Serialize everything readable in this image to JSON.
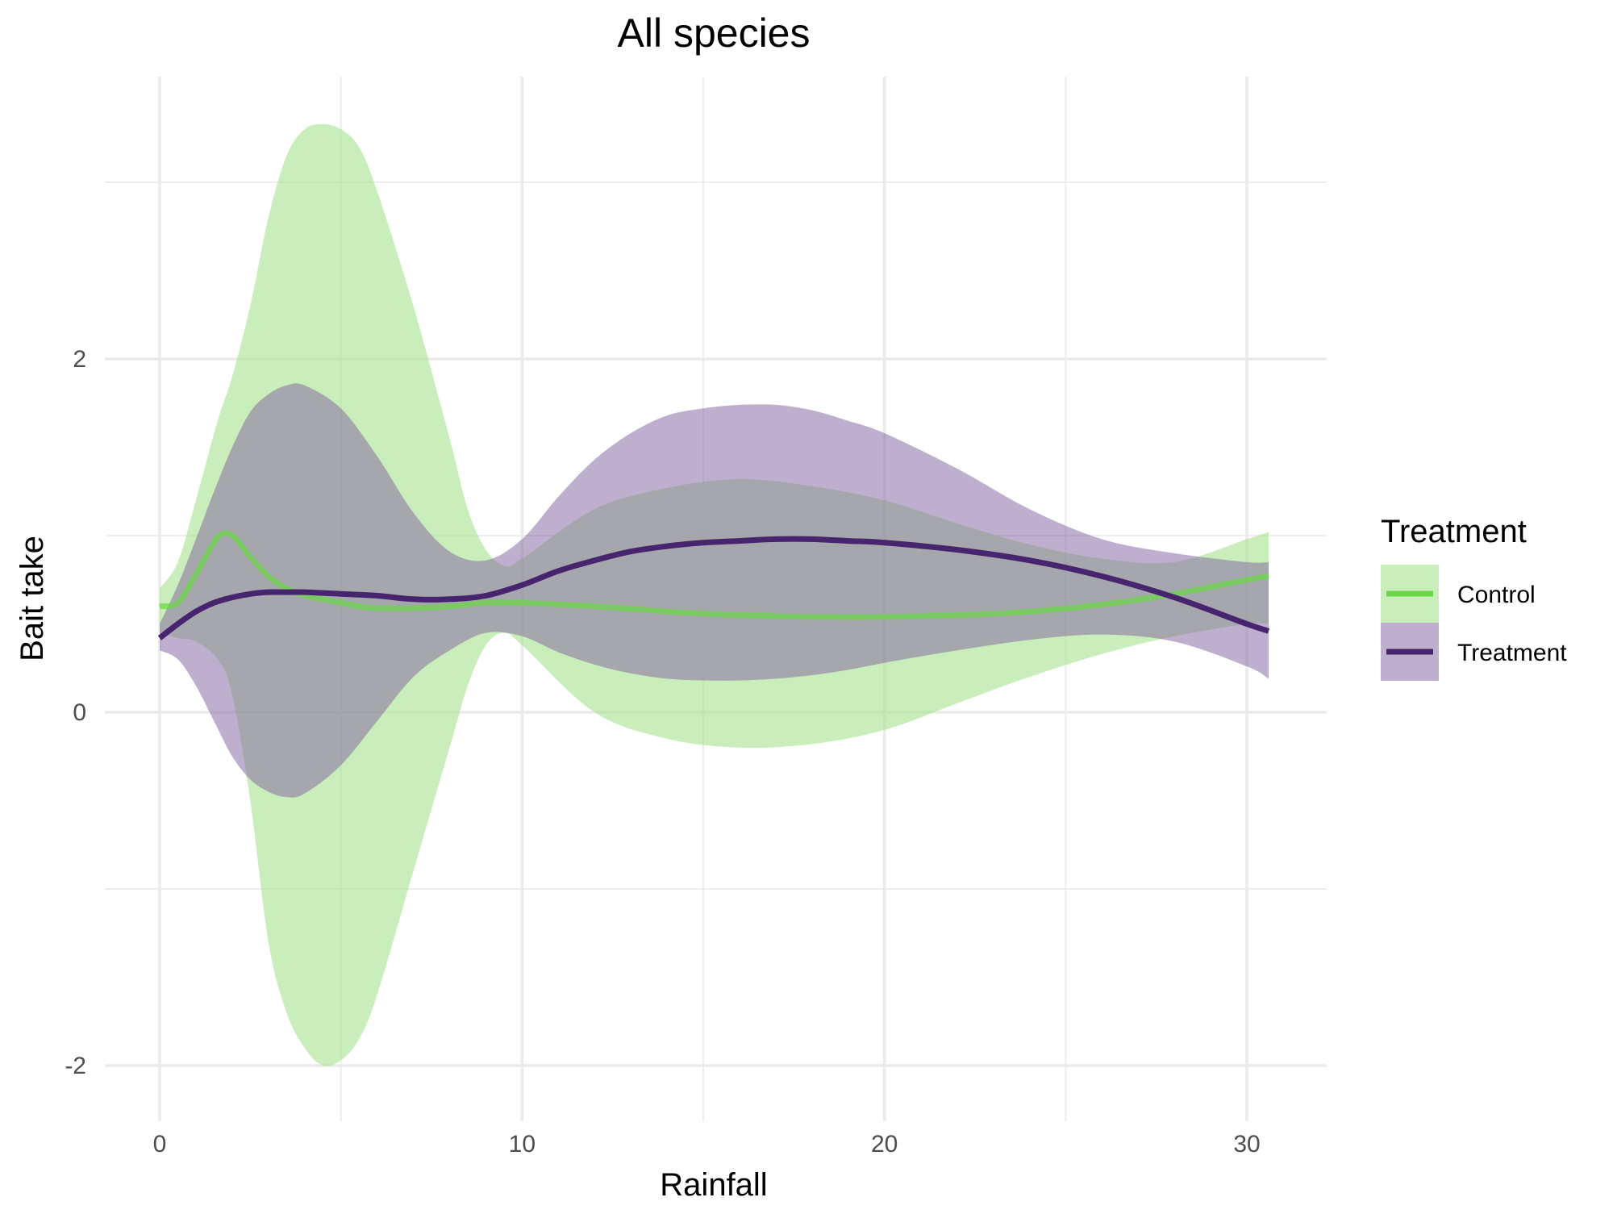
{
  "chart_data": {
    "type": "line",
    "title": "All species",
    "xlabel": "Rainfall",
    "ylabel": "Bait take",
    "xlim": [
      -1.5,
      32
    ],
    "ylim": [
      -2.25,
      3.55
    ],
    "x_ticks": [
      0,
      10,
      20,
      30
    ],
    "x_tick_labels": [
      "0",
      "10",
      "20",
      "30"
    ],
    "y_ticks": [
      -2,
      0,
      2
    ],
    "y_tick_labels": [
      "-2",
      "0",
      "2"
    ],
    "x_minor": [
      5,
      15,
      25
    ],
    "y_minor": [
      -1,
      1,
      3
    ],
    "grid": true,
    "legend": {
      "title": "Treatment",
      "position": "right",
      "entries": [
        "Control",
        "Treatment"
      ]
    },
    "series": [
      {
        "name": "Control",
        "color": "#6cd44a",
        "band_color": "#a7e38d",
        "band_opacity": 0.6,
        "line_opacity": 0.75,
        "points": [
          {
            "x": 0,
            "y": 0.6,
            "lo": 0.45,
            "hi": 0.7
          },
          {
            "x": 0.5,
            "y": 0.62,
            "lo": 0.42,
            "hi": 0.85
          },
          {
            "x": 1.0,
            "y": 0.78,
            "lo": 0.4,
            "hi": 1.2
          },
          {
            "x": 1.6,
            "y": 0.99,
            "lo": 0.3,
            "hi": 1.65
          },
          {
            "x": 2.0,
            "y": 1.0,
            "lo": 0.1,
            "hi": 1.9
          },
          {
            "x": 2.5,
            "y": 0.88,
            "lo": -0.5,
            "hi": 2.3
          },
          {
            "x": 3.0,
            "y": 0.77,
            "lo": -1.3,
            "hi": 2.8
          },
          {
            "x": 3.5,
            "y": 0.7,
            "lo": -1.7,
            "hi": 3.15
          },
          {
            "x": 4.0,
            "y": 0.66,
            "lo": -1.9,
            "hi": 3.3
          },
          {
            "x": 4.5,
            "y": 0.64,
            "lo": -2.0,
            "hi": 3.33
          },
          {
            "x": 5.0,
            "y": 0.62,
            "lo": -1.97,
            "hi": 3.3
          },
          {
            "x": 5.5,
            "y": 0.6,
            "lo": -1.85,
            "hi": 3.2
          },
          {
            "x": 6.0,
            "y": 0.59,
            "lo": -1.6,
            "hi": 2.95
          },
          {
            "x": 7.0,
            "y": 0.59,
            "lo": -0.9,
            "hi": 2.3
          },
          {
            "x": 8.0,
            "y": 0.6,
            "lo": -0.2,
            "hi": 1.55
          },
          {
            "x": 8.5,
            "y": 0.61,
            "lo": 0.15,
            "hi": 1.15
          },
          {
            "x": 9.0,
            "y": 0.62,
            "lo": 0.38,
            "hi": 0.92
          },
          {
            "x": 9.5,
            "y": 0.62,
            "lo": 0.45,
            "hi": 0.83
          },
          {
            "x": 10.0,
            "y": 0.62,
            "lo": 0.38,
            "hi": 0.87
          },
          {
            "x": 12.0,
            "y": 0.6,
            "lo": 0.0,
            "hi": 1.15
          },
          {
            "x": 14.0,
            "y": 0.57,
            "lo": -0.15,
            "hi": 1.27
          },
          {
            "x": 16.0,
            "y": 0.55,
            "lo": -0.2,
            "hi": 1.32
          },
          {
            "x": 18.0,
            "y": 0.54,
            "lo": -0.18,
            "hi": 1.28
          },
          {
            "x": 20.0,
            "y": 0.54,
            "lo": -0.1,
            "hi": 1.2
          },
          {
            "x": 22.0,
            "y": 0.55,
            "lo": 0.05,
            "hi": 1.07
          },
          {
            "x": 24.0,
            "y": 0.57,
            "lo": 0.2,
            "hi": 0.95
          },
          {
            "x": 26.0,
            "y": 0.61,
            "lo": 0.33,
            "hi": 0.87
          },
          {
            "x": 28.0,
            "y": 0.67,
            "lo": 0.43,
            "hi": 0.85
          },
          {
            "x": 30.0,
            "y": 0.75,
            "lo": 0.5,
            "hi": 0.98
          },
          {
            "x": 30.6,
            "y": 0.77,
            "lo": 0.5,
            "hi": 1.02
          }
        ]
      },
      {
        "name": "Treatment",
        "color": "#46246e",
        "band_color": "#8060a0",
        "band_opacity": 0.5,
        "line_opacity": 1,
        "points": [
          {
            "x": 0,
            "y": 0.42,
            "lo": 0.35,
            "hi": 0.5
          },
          {
            "x": 0.5,
            "y": 0.5,
            "lo": 0.3,
            "hi": 0.72
          },
          {
            "x": 1.0,
            "y": 0.57,
            "lo": 0.15,
            "hi": 0.98
          },
          {
            "x": 1.5,
            "y": 0.62,
            "lo": -0.05,
            "hi": 1.25
          },
          {
            "x": 2.0,
            "y": 0.65,
            "lo": -0.25,
            "hi": 1.5
          },
          {
            "x": 2.5,
            "y": 0.67,
            "lo": -0.38,
            "hi": 1.7
          },
          {
            "x": 3.0,
            "y": 0.68,
            "lo": -0.45,
            "hi": 1.8
          },
          {
            "x": 3.5,
            "y": 0.68,
            "lo": -0.48,
            "hi": 1.85
          },
          {
            "x": 4.0,
            "y": 0.68,
            "lo": -0.46,
            "hi": 1.85
          },
          {
            "x": 5.0,
            "y": 0.67,
            "lo": -0.3,
            "hi": 1.72
          },
          {
            "x": 6.0,
            "y": 0.66,
            "lo": -0.05,
            "hi": 1.45
          },
          {
            "x": 7.0,
            "y": 0.64,
            "lo": 0.2,
            "hi": 1.13
          },
          {
            "x": 8.0,
            "y": 0.64,
            "lo": 0.35,
            "hi": 0.91
          },
          {
            "x": 9.0,
            "y": 0.66,
            "lo": 0.45,
            "hi": 0.86
          },
          {
            "x": 10.0,
            "y": 0.72,
            "lo": 0.43,
            "hi": 0.98
          },
          {
            "x": 11.0,
            "y": 0.8,
            "lo": 0.34,
            "hi": 1.22
          },
          {
            "x": 12.0,
            "y": 0.86,
            "lo": 0.27,
            "hi": 1.43
          },
          {
            "x": 13.0,
            "y": 0.91,
            "lo": 0.22,
            "hi": 1.58
          },
          {
            "x": 14.0,
            "y": 0.94,
            "lo": 0.19,
            "hi": 1.68
          },
          {
            "x": 15.0,
            "y": 0.96,
            "lo": 0.18,
            "hi": 1.72
          },
          {
            "x": 16.0,
            "y": 0.97,
            "lo": 0.18,
            "hi": 1.74
          },
          {
            "x": 17.0,
            "y": 0.98,
            "lo": 0.19,
            "hi": 1.74
          },
          {
            "x": 18.0,
            "y": 0.98,
            "lo": 0.21,
            "hi": 1.71
          },
          {
            "x": 19.0,
            "y": 0.97,
            "lo": 0.24,
            "hi": 1.65
          },
          {
            "x": 20.0,
            "y": 0.96,
            "lo": 0.28,
            "hi": 1.58
          },
          {
            "x": 22.0,
            "y": 0.92,
            "lo": 0.35,
            "hi": 1.38
          },
          {
            "x": 24.0,
            "y": 0.86,
            "lo": 0.41,
            "hi": 1.15
          },
          {
            "x": 26.0,
            "y": 0.77,
            "lo": 0.44,
            "hi": 0.98
          },
          {
            "x": 28.0,
            "y": 0.65,
            "lo": 0.4,
            "hi": 0.9
          },
          {
            "x": 30.0,
            "y": 0.5,
            "lo": 0.26,
            "hi": 0.85
          },
          {
            "x": 30.6,
            "y": 0.46,
            "lo": 0.19,
            "hi": 0.85
          }
        ]
      }
    ]
  }
}
